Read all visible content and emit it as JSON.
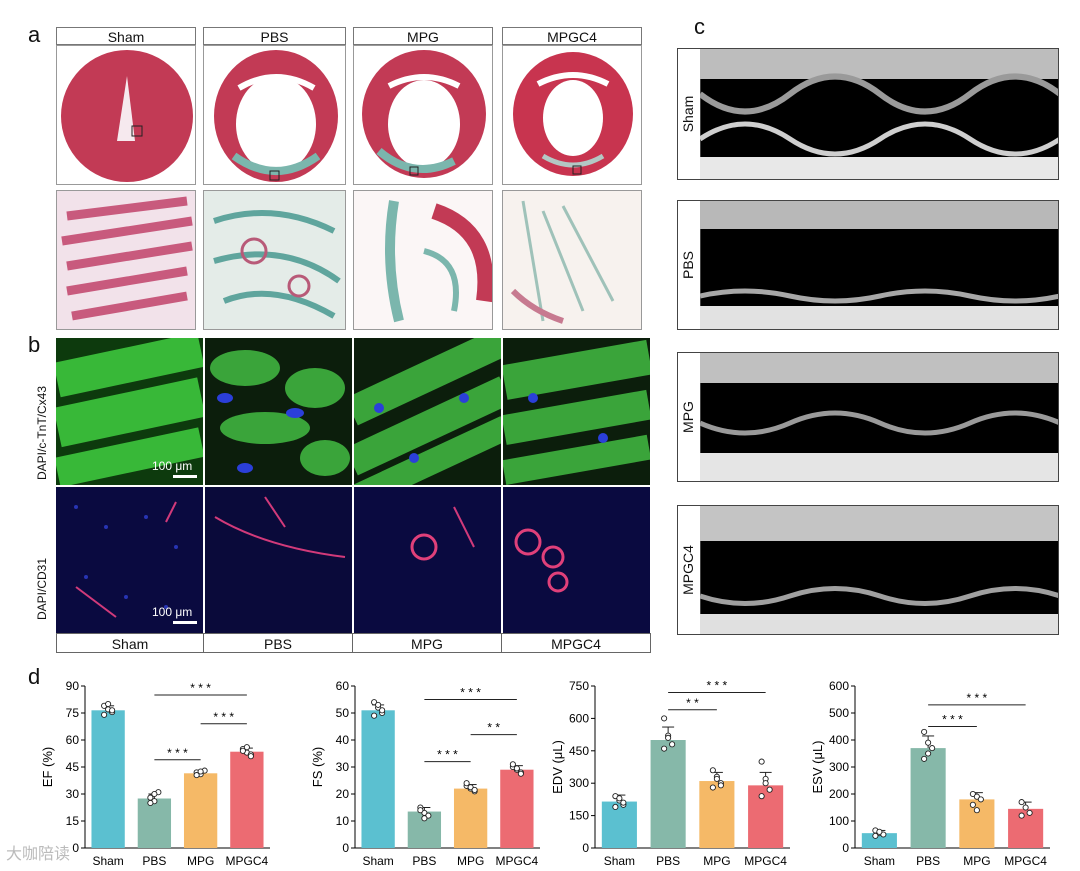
{
  "panels": {
    "a": "a",
    "b": "b",
    "c": "c",
    "d": "d"
  },
  "groups": [
    "Sham",
    "PBS",
    "MPG",
    "MPGC4"
  ],
  "panel_b": {
    "row1_label": "DAPI/c-TnT/Cx43",
    "row2_label": "DAPI/CD31",
    "scale_label": "100 μm"
  },
  "panel_c": {
    "labels": [
      "Sham",
      "PBS",
      "MPG",
      "MPGC4"
    ]
  },
  "watermark": "大咖陪读",
  "chart_data": [
    {
      "type": "bar",
      "ylabel": "EF (%)",
      "categories": [
        "Sham",
        "PBS",
        "MPG",
        "MPGC4"
      ],
      "values": [
        76.5,
        27.5,
        41.5,
        53.5
      ],
      "errors": [
        2.5,
        2.5,
        1.5,
        2
      ],
      "ylim": [
        0,
        90
      ],
      "yticks": [
        0,
        15,
        30,
        45,
        60,
        75,
        90
      ],
      "points": [
        [
          79,
          77,
          75.5,
          74,
          80,
          76.5
        ],
        [
          28,
          26,
          31,
          25,
          30
        ],
        [
          42,
          41,
          43,
          40.5,
          42.5
        ],
        [
          55,
          53,
          52,
          54,
          56,
          51
        ]
      ],
      "sig": [
        {
          "from": 1,
          "to": 3,
          "label": "* * *",
          "level": 85
        },
        {
          "from": 2,
          "to": 3,
          "label": "* * *",
          "level": 69
        },
        {
          "from": 1,
          "to": 2,
          "label": "* * *",
          "level": 49
        }
      ],
      "colors": [
        "#5bc0d0",
        "#86b8a9",
        "#f5b967",
        "#ec6b72"
      ]
    },
    {
      "type": "bar",
      "ylabel": "FS (%)",
      "categories": [
        "Sham",
        "PBS",
        "MPG",
        "MPGC4"
      ],
      "values": [
        51,
        13.5,
        22,
        29
      ],
      "errors": [
        2,
        1.5,
        1.5,
        1.5
      ],
      "ylim": [
        0,
        60
      ],
      "yticks": [
        0,
        10,
        20,
        30,
        40,
        50,
        60
      ],
      "points": [
        [
          54,
          52,
          50,
          49,
          53,
          51
        ],
        [
          15,
          13,
          12,
          14,
          11
        ],
        [
          23,
          22,
          21,
          24,
          22.5,
          21.5
        ],
        [
          30,
          29,
          28,
          31,
          29.5,
          27.5
        ]
      ],
      "sig": [
        {
          "from": 1,
          "to": 3,
          "label": "* * *",
          "level": 55
        },
        {
          "from": 2,
          "to": 3,
          "label": "* *",
          "level": 42
        },
        {
          "from": 1,
          "to": 2,
          "label": "* * *",
          "level": 32
        }
      ],
      "colors": [
        "#5bc0d0",
        "#86b8a9",
        "#f5b967",
        "#ec6b72"
      ]
    },
    {
      "type": "bar",
      "ylabel": "EDV (μL)",
      "categories": [
        "Sham",
        "PBS",
        "MPG",
        "MPGC4"
      ],
      "values": [
        215,
        500,
        310,
        290
      ],
      "errors": [
        30,
        60,
        40,
        60
      ],
      "ylim": [
        0,
        750
      ],
      "yticks": [
        0,
        150,
        300,
        450,
        600,
        750
      ],
      "points": [
        [
          240,
          220,
          200,
          190,
          230,
          210
        ],
        [
          600,
          520,
          480,
          460,
          510
        ],
        [
          360,
          330,
          300,
          280,
          320,
          290
        ],
        [
          400,
          320,
          270,
          240,
          300
        ]
      ],
      "sig": [
        {
          "from": 1,
          "to": 3,
          "label": "* * *",
          "level": 720
        },
        {
          "from": 1,
          "to": 2,
          "label": "* *",
          "level": 640
        }
      ],
      "colors": [
        "#5bc0d0",
        "#86b8a9",
        "#f5b967",
        "#ec6b72"
      ]
    },
    {
      "type": "bar",
      "ylabel": "ESV (μL)",
      "categories": [
        "Sham",
        "PBS",
        "MPG",
        "MPGC4"
      ],
      "values": [
        55,
        370,
        180,
        145
      ],
      "errors": [
        10,
        45,
        25,
        25
      ],
      "ylim": [
        0,
        600
      ],
      "yticks": [
        0,
        100,
        200,
        300,
        400,
        500,
        600
      ],
      "points": [
        [
          65,
          55,
          50,
          45,
          60
        ],
        [
          430,
          390,
          370,
          330,
          350
        ],
        [
          200,
          190,
          180,
          160,
          140
        ],
        [
          170,
          150,
          130,
          120
        ]
      ],
      "sig": [
        {
          "from": 1,
          "to": 3,
          "label": "* * *",
          "level": 530
        },
        {
          "from": 1,
          "to": 2,
          "label": "* * *",
          "level": 450
        }
      ],
      "colors": [
        "#5bc0d0",
        "#86b8a9",
        "#f5b967",
        "#ec6b72"
      ]
    }
  ]
}
